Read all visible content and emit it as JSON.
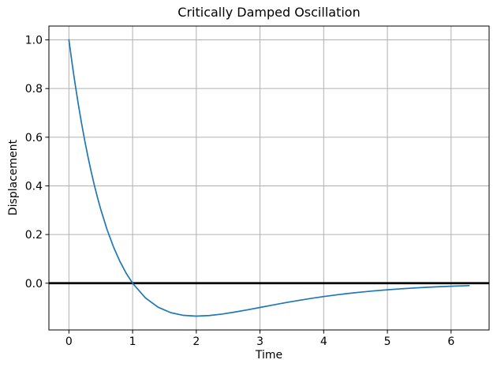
{
  "figure": {
    "background": "#ffffff"
  },
  "chart_data": {
    "type": "line",
    "title": "Critically Damped Oscillation",
    "xlabel": "Time",
    "ylabel": "Displacement",
    "xlim": [
      -0.314,
      6.597
    ],
    "ylim": [
      -0.1921,
      1.0568
    ],
    "xticks": [
      0,
      1,
      2,
      3,
      4,
      5,
      6
    ],
    "xtick_labels": [
      "0",
      "1",
      "2",
      "3",
      "4",
      "5",
      "6"
    ],
    "yticks": [
      0.0,
      0.2,
      0.4,
      0.6,
      0.8,
      1.0
    ],
    "ytick_labels": [
      "0.0",
      "0.2",
      "0.4",
      "0.6",
      "0.8",
      "1.0"
    ],
    "grid": true,
    "grid_color": "#b0b0b0",
    "spine_color": "#000000",
    "legend_position": "none",
    "zero_line": {
      "y": 0.0,
      "color": "#000000",
      "width": 2.8
    },
    "series": [
      {
        "name": "displacement",
        "color": "#1f77b4",
        "width": 1.7,
        "x": [
          0,
          0.05,
          0.1,
          0.15,
          0.2,
          0.25,
          0.3,
          0.35,
          0.4,
          0.45,
          0.5,
          0.6,
          0.7,
          0.8,
          0.9,
          1.0,
          1.2,
          1.4,
          1.6,
          1.8,
          2.0,
          2.2,
          2.4,
          2.6,
          2.8,
          3.0,
          3.2,
          3.4,
          3.6,
          3.8,
          4.0,
          4.2,
          4.4,
          4.6,
          4.8,
          5.0,
          5.2,
          5.4,
          5.6,
          5.8,
          6.0,
          6.2,
          6.283
        ],
        "y": [
          1.0,
          0.9037,
          0.8144,
          0.7316,
          0.655,
          0.5841,
          0.5186,
          0.458,
          0.4022,
          0.3507,
          0.3033,
          0.2195,
          0.149,
          0.0899,
          0.0407,
          0.0,
          -0.0602,
          -0.0986,
          -0.1211,
          -0.1322,
          -0.1353,
          -0.133,
          -0.127,
          -0.1188,
          -0.1095,
          -0.0996,
          -0.0897,
          -0.0801,
          -0.071,
          -0.0626,
          -0.0549,
          -0.048,
          -0.0417,
          -0.0362,
          -0.0313,
          -0.027,
          -0.0232,
          -0.0199,
          -0.017,
          -0.0145,
          -0.0124,
          -0.0106,
          -0.0099
        ]
      }
    ]
  }
}
